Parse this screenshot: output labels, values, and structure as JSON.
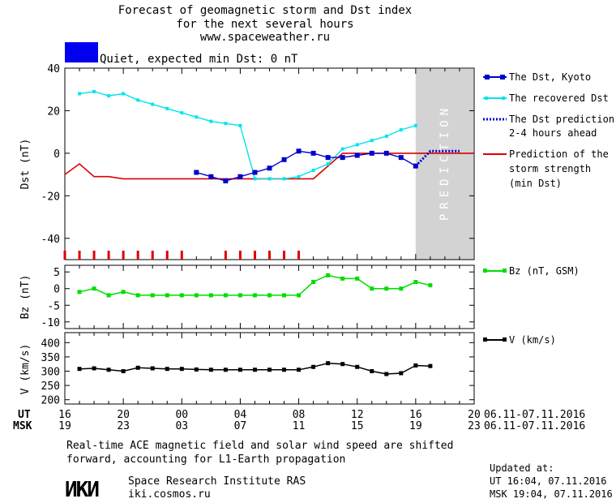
{
  "header": {
    "title_line1": "Forecast of geomagnetic storm and Dst index",
    "title_line2": "for the next several hours",
    "site": "www.spaceweather.ru",
    "status_text": "Quiet, expected min Dst: 0 nT",
    "status_color": "#0000ee"
  },
  "prediction_band_label": "PREDICTION",
  "legends": {
    "dst_kyoto": "The Dst, Kyoto",
    "recovered": [
      "The recovered Dst"
    ],
    "prediction": [
      "The Dst prediction",
      "2-4 hours ahead"
    ],
    "storm": [
      "Prediction of the",
      "storm strength",
      "(min Dst)"
    ],
    "bz": "Bz (nT, GSM)",
    "v": "V (km/s)"
  },
  "axes": {
    "ut_label": "UT",
    "msk_label": "MSK",
    "ut_ticks": [
      "16",
      "20",
      "00",
      "04",
      "08",
      "12",
      "16",
      "20"
    ],
    "msk_ticks": [
      "19",
      "23",
      "03",
      "07",
      "11",
      "15",
      "19",
      "23"
    ],
    "ut_date_range": "06.11-07.11.2016",
    "msk_date_range": "06.11-07.11.2016"
  },
  "notes": {
    "line1": "Real-time ACE magnetic field and solar wind speed are shifted",
    "line2": "forward, accounting for L1-Earth propagation"
  },
  "footer": {
    "logo_text": "ИКИ",
    "institute": "Space Research Institute RAS",
    "site": "iki.cosmos.ru",
    "updated_label": "Updated at:",
    "updated_ut": "UT   16:04, 07.11.2016",
    "updated_msk": "MSK 19:04, 07.11.2016"
  },
  "colors": {
    "dst_kyoto": "#0000cc",
    "recovered": "#00e5ee",
    "prediction": "#0000cc",
    "storm": "#dd0000",
    "bz": "#00dd00",
    "v": "#000000",
    "prediction_band": "#d3d3d3"
  },
  "chart_data": [
    {
      "type": "line",
      "title": "Forecast of geomagnetic storm and Dst index",
      "x_unit": "hours UT from 06.11.2016 16:00",
      "xlim": [
        16,
        44
      ],
      "ylabel": "Dst (nT)",
      "ylim": [
        -50,
        40
      ],
      "yticks": [
        -40,
        -20,
        0,
        20,
        40
      ],
      "prediction_band": [
        40,
        44
      ],
      "series": [
        {
          "name": "The Dst, Kyoto",
          "x": [
            25,
            26,
            27,
            28,
            29,
            30,
            31,
            32,
            33,
            34,
            35,
            36,
            37,
            38,
            39,
            40
          ],
          "y": [
            -9,
            -11,
            -13,
            -11,
            -9,
            -7,
            -3,
            1,
            0,
            -2,
            -2,
            -1,
            0,
            0,
            -2,
            -6
          ]
        },
        {
          "name": "The recovered Dst",
          "x": [
            17,
            18,
            19,
            20,
            21,
            22,
            23,
            24,
            25,
            26,
            27,
            28,
            29,
            30,
            31,
            32,
            33,
            34,
            35,
            36,
            37,
            38,
            39,
            40
          ],
          "y": [
            28,
            29,
            27,
            28,
            25,
            23,
            21,
            19,
            17,
            15,
            14,
            13,
            -12,
            -12,
            -12,
            -11,
            -8,
            -5,
            2,
            4,
            6,
            8,
            11,
            13
          ]
        },
        {
          "name": "The Dst prediction 2-4 hours ahead",
          "x": [
            40,
            41,
            42,
            43
          ],
          "y": [
            -6,
            1,
            1,
            1
          ]
        },
        {
          "name": "Prediction of the storm strength (min Dst)",
          "x": [
            16,
            17,
            18,
            19,
            20,
            24,
            26,
            33,
            35,
            44
          ],
          "y": [
            -10,
            -5,
            -11,
            -11,
            -12,
            -12,
            -12,
            -12,
            0,
            0
          ]
        }
      ],
      "marker_hours": [
        16,
        17,
        18,
        19,
        20,
        21,
        22,
        23,
        24,
        27,
        28,
        29,
        30,
        31,
        32
      ]
    },
    {
      "type": "line",
      "ylabel": "Bz (nT)",
      "ylim": [
        -12,
        7
      ],
      "yticks": [
        -10,
        -5,
        0,
        5
      ],
      "series": [
        {
          "name": "Bz (nT, GSM)",
          "x": [
            17,
            18,
            19,
            20,
            21,
            22,
            23,
            24,
            25,
            26,
            27,
            28,
            29,
            30,
            31,
            32,
            33,
            34,
            35,
            36,
            37,
            38,
            39,
            40,
            41
          ],
          "y": [
            -1,
            0,
            -2,
            -1,
            -2,
            -2,
            -2,
            -2,
            -2,
            -2,
            -2,
            -2,
            -2,
            -2,
            -2,
            -2,
            2,
            4,
            3,
            3,
            0,
            0,
            0,
            2,
            1
          ]
        }
      ]
    },
    {
      "type": "line",
      "ylabel": "V (km/s)",
      "ylim": [
        185,
        435
      ],
      "yticks": [
        200,
        250,
        300,
        350,
        400
      ],
      "series": [
        {
          "name": "V (km/s)",
          "x": [
            17,
            18,
            19,
            20,
            21,
            22,
            23,
            24,
            25,
            26,
            27,
            28,
            29,
            30,
            31,
            32,
            33,
            34,
            35,
            36,
            37,
            38,
            39,
            40,
            41
          ],
          "y": [
            308,
            310,
            305,
            300,
            312,
            310,
            308,
            308,
            306,
            305,
            305,
            305,
            305,
            305,
            305,
            305,
            315,
            328,
            325,
            315,
            300,
            290,
            293,
            320,
            318
          ]
        }
      ]
    }
  ]
}
